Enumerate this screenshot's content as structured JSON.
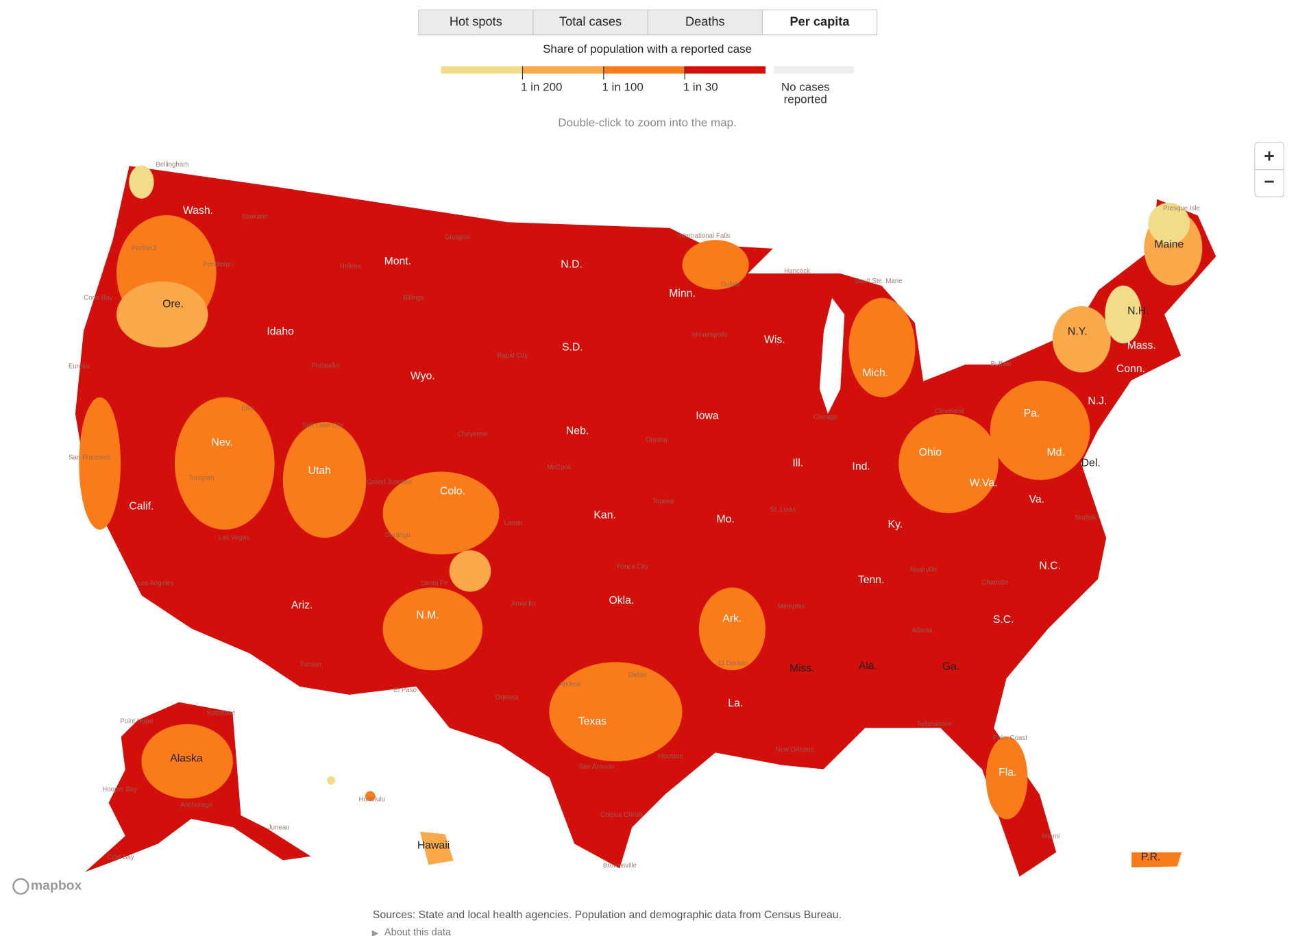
{
  "tabs": [
    "Hot spots",
    "Total cases",
    "Deaths",
    "Per capita"
  ],
  "legend": {
    "title": "Share of population with a reported case",
    "labels": [
      "1 in 200",
      "1 in 100",
      "1 in 30"
    ],
    "no_data": [
      "No cases",
      "reported"
    ],
    "colors": [
      "#f2dc8a",
      "#f9a84a",
      "#f97b1a",
      "#d20f0a",
      "#eeeeee"
    ]
  },
  "hint": "Double-click to zoom into the map.",
  "zoom": [
    "+",
    "−"
  ],
  "map": {
    "state_labels": [
      "Wash.",
      "Ore.",
      "Calif.",
      "Nev.",
      "Idaho",
      "Mont.",
      "Wyo.",
      "Utah",
      "Colo.",
      "Ariz.",
      "N.M.",
      "N.D.",
      "S.D.",
      "Neb.",
      "Kan.",
      "Okla.",
      "Texas",
      "Minn.",
      "Iowa",
      "Mo.",
      "Ark.",
      "La.",
      "Wis.",
      "Ill.",
      "Mich.",
      "Ind.",
      "Ohio",
      "Ky.",
      "Tenn.",
      "Miss.",
      "Ala.",
      "Ga.",
      "Fla.",
      "S.C.",
      "N.C.",
      "Va.",
      "W.Va.",
      "Pa.",
      "N.Y.",
      "Md.",
      "Del.",
      "N.J.",
      "Conn.",
      "Mass.",
      "N.H.",
      "Maine",
      "Alaska",
      "Hawaii",
      "P.R."
    ],
    "city_labels": [
      "Bellingham",
      "Spokane",
      "Portland",
      "Pendleton",
      "Coos Bay",
      "Eureka",
      "San Francisco",
      "Tonopah",
      "Elko",
      "Pocatello",
      "Helena",
      "Billings",
      "Glasgow",
      "Salt Lake City",
      "Las Vegas",
      "Los Angeles",
      "Tucson",
      "Grand Junction",
      "Durango",
      "Santa Fe",
      "Cheyenne",
      "Rapid City",
      "McCook",
      "Lamar",
      "International Falls",
      "Duluth",
      "Minneapolis",
      "Omaha",
      "Topeka",
      "Amarillo",
      "Ponca City",
      "Abilene",
      "Odessa",
      "Dallas",
      "Houston",
      "San Antonio",
      "Corpus Christi",
      "Brownsville",
      "El Dorado",
      "New Orleans",
      "Memphis",
      "St. Louis",
      "Chicago",
      "Hancock",
      "Sault Ste. Marie",
      "Cleveland",
      "Buffalo",
      "Nashville",
      "Atlanta",
      "Tallahassee",
      "Palm Coast",
      "Miami",
      "Norfolk",
      "Charlotte",
      "Presque Isle",
      "Kotzebue",
      "Point Hope",
      "Hooper Bay",
      "Anchorage",
      "Juneau",
      "Cold Bay",
      "Honolulu",
      "El Paso"
    ]
  },
  "attribution": "mapbox",
  "footer": {
    "sources": "Sources: State and local health agencies. Population and demographic data from Census Bureau.",
    "about": "About this data"
  }
}
